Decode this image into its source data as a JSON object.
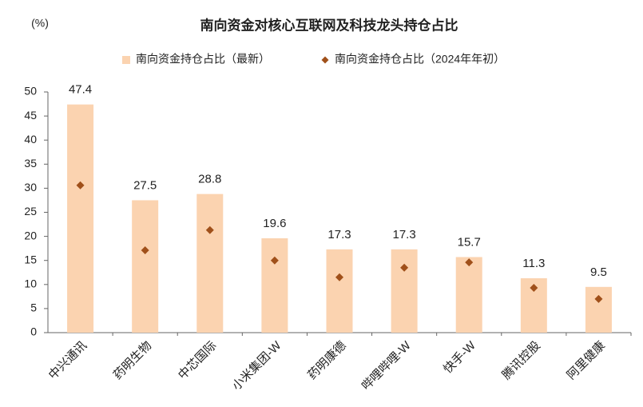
{
  "chart_data": {
    "type": "bar",
    "title": "南向资金对核心互联网及科技龙头持仓占比",
    "y_label": "(%)",
    "categories": [
      "中兴通讯",
      "药明生物",
      "中芯国际",
      "小米集团-W",
      "药明康德",
      "哔哩哔哩-W",
      "快手-W",
      "腾讯控股",
      "阿里健康"
    ],
    "series": [
      {
        "name": "南向资金持仓占比（最新）",
        "type": "bar",
        "color": "#fbd3b0",
        "values": [
          47.4,
          27.5,
          28.8,
          19.6,
          17.3,
          17.3,
          15.7,
          11.3,
          9.5
        ]
      },
      {
        "name": "南向资金持仓占比（2024年年初）",
        "type": "scatter",
        "color": "#a0501a",
        "values": [
          30.6,
          17.1,
          21.3,
          15.0,
          11.5,
          13.5,
          14.6,
          9.3,
          7.0
        ]
      }
    ],
    "ylim": [
      0,
      50
    ],
    "yticks": [
      0,
      5,
      10,
      15,
      20,
      25,
      30,
      35,
      40,
      45,
      50
    ],
    "grid": false
  }
}
